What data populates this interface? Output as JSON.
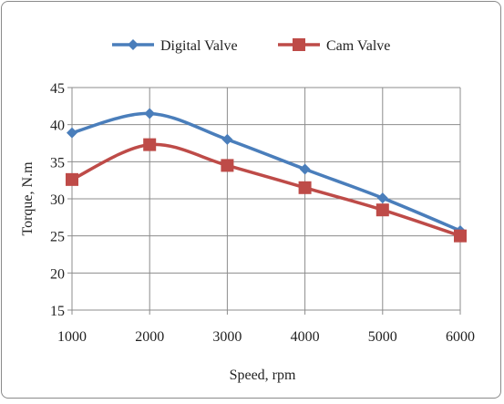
{
  "chart_data": {
    "type": "line",
    "title": "",
    "xlabel": "Speed, rpm",
    "ylabel": "Torque, N.m",
    "x": [
      1000,
      2000,
      3000,
      4000,
      5000,
      6000
    ],
    "xticks": [
      "1000",
      "2000",
      "3000",
      "4000",
      "5000",
      "6000"
    ],
    "yticks": [
      "15",
      "20",
      "25",
      "30",
      "35",
      "40",
      "45"
    ],
    "xlim": [
      1000,
      6000
    ],
    "ylim": [
      15,
      45
    ],
    "grid": true,
    "legend_position": "top",
    "series": [
      {
        "name": "Digital Valve",
        "values": [
          38.9,
          41.5,
          38.0,
          34.0,
          30.1,
          25.7
        ],
        "color": "#4a7ebb",
        "marker": "diamond"
      },
      {
        "name": "Cam Valve",
        "values": [
          32.6,
          37.3,
          34.5,
          31.5,
          28.5,
          25.0
        ],
        "color": "#be4b48",
        "marker": "square"
      }
    ]
  }
}
